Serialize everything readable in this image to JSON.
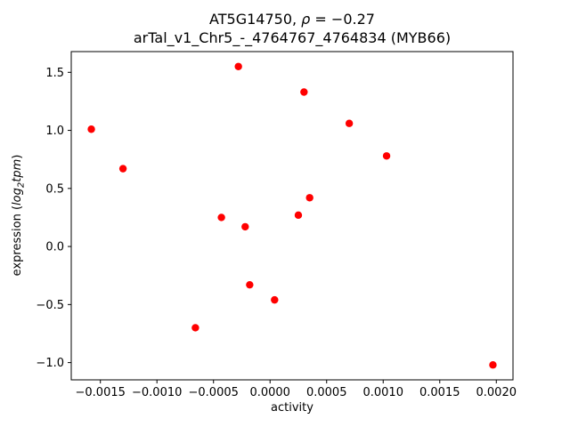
{
  "chart_data": {
    "type": "scatter",
    "title": {
      "gene": "AT5G14750, ",
      "rho_symbol": "ρ",
      "rho_value": " = −0.27",
      "line2": "arTal_v1_Chr5_-_4764767_4764834 (MYB66)"
    },
    "xlabel": "activity",
    "ylabel_parts": {
      "prefix": "expression (",
      "log": "log",
      "sub": "2",
      "tpm": "tpm",
      "close": ")"
    },
    "marker_color": "#ff0000",
    "grid": false,
    "legend": "none",
    "xlim": [
      -0.0017575,
      0.0021475
    ],
    "ylim": [
      -1.1485,
      1.6785
    ],
    "xticks": [
      -0.0015,
      -0.001,
      -0.0005,
      0.0,
      0.0005,
      0.001,
      0.0015,
      0.002
    ],
    "xtick_labels": [
      "−0.0015",
      "−0.0010",
      "−0.0005",
      "0.0000",
      "0.0005",
      "0.0010",
      "0.0015",
      "0.0020"
    ],
    "yticks": [
      -1.0,
      -0.5,
      0.0,
      0.5,
      1.0,
      1.5
    ],
    "ytick_labels": [
      "−1.0",
      "−0.5",
      "0.0",
      "0.5",
      "1.0",
      "1.5"
    ],
    "points": [
      {
        "x": -0.00158,
        "y": 1.01
      },
      {
        "x": -0.0013,
        "y": 0.67
      },
      {
        "x": -0.00066,
        "y": -0.7
      },
      {
        "x": -0.00043,
        "y": 0.25
      },
      {
        "x": -0.00028,
        "y": 1.55
      },
      {
        "x": -0.00022,
        "y": 0.17
      },
      {
        "x": -0.00018,
        "y": -0.33
      },
      {
        "x": 4e-05,
        "y": -0.46
      },
      {
        "x": 0.00025,
        "y": 0.27
      },
      {
        "x": 0.0003,
        "y": 1.33
      },
      {
        "x": 0.00035,
        "y": 0.42
      },
      {
        "x": 0.0007,
        "y": 1.06
      },
      {
        "x": 0.00103,
        "y": 0.78
      },
      {
        "x": 0.00197,
        "y": -1.02
      }
    ]
  }
}
